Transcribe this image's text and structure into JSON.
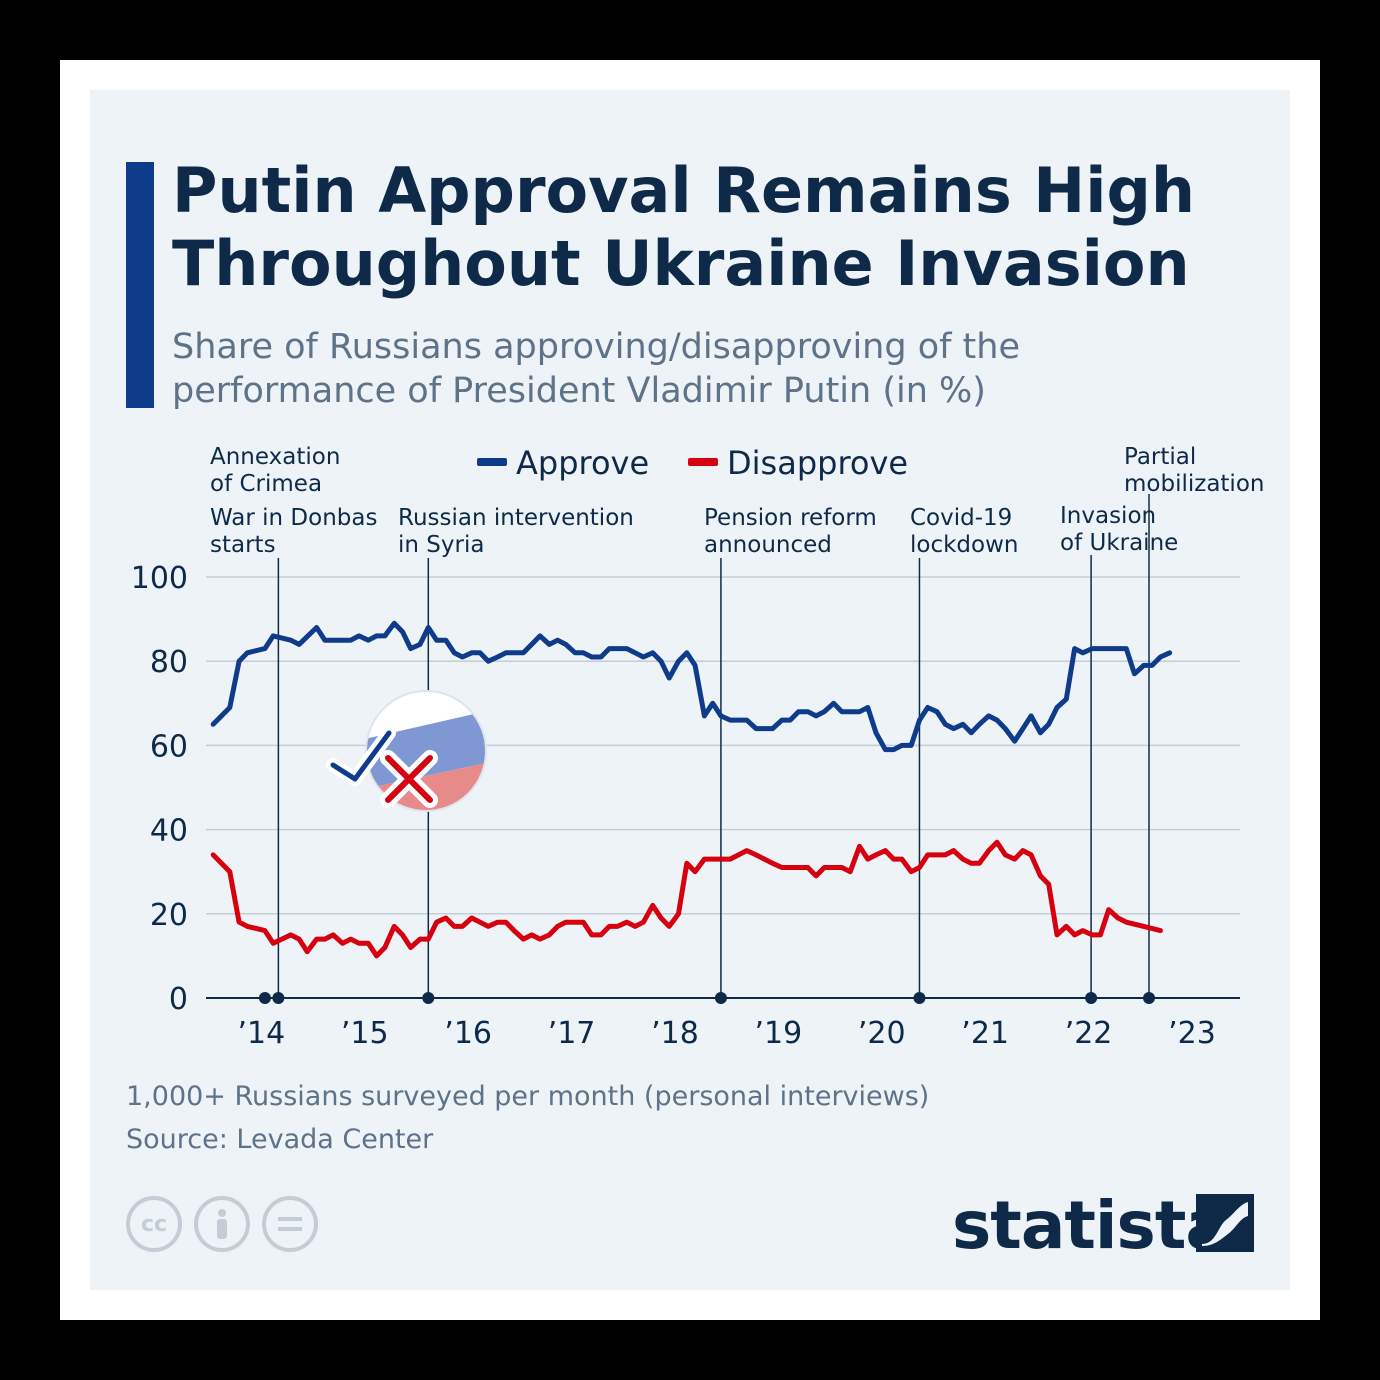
{
  "header": {
    "title": "Putin Approval Remains High Throughout Ukraine Invasion",
    "subtitle": "Share of Russians approving/disapproving of the performance of President Vladimir Putin (in %)"
  },
  "footer": {
    "note": "1,000+ Russians surveyed per month (personal interviews)",
    "source": "Source: Levada Center",
    "brand": "statista"
  },
  "icons": [
    "cc-icon",
    "person-icon",
    "equals-icon",
    "statista-logo-icon",
    "russia-flag-check-cross-icon"
  ],
  "colors": {
    "approve": "#0f3c8a",
    "disapprove": "#d7000f",
    "title": "#0f2a48",
    "accent": "#0f3c8a"
  },
  "chart_data": {
    "type": "line",
    "title": "",
    "xlabel": "",
    "ylabel": "",
    "ylim": [
      0,
      100
    ],
    "yticks": [
      0,
      20,
      40,
      60,
      80,
      100
    ],
    "xlim": [
      2013.6,
      2023.6
    ],
    "xticks": [
      {
        "value": 2014,
        "label": "’14"
      },
      {
        "value": 2015,
        "label": "’15"
      },
      {
        "value": 2016,
        "label": "’16"
      },
      {
        "value": 2017,
        "label": "’17"
      },
      {
        "value": 2018,
        "label": "’18"
      },
      {
        "value": 2019,
        "label": "’19"
      },
      {
        "value": 2020,
        "label": "’20"
      },
      {
        "value": 2021,
        "label": "’21"
      },
      {
        "value": 2022,
        "label": "’22"
      },
      {
        "value": 2023,
        "label": "’23"
      }
    ],
    "grid": true,
    "legend": "top-center",
    "series": [
      {
        "name": "Approve",
        "color": "#0f3c8a",
        "points": [
          [
            2013.67,
            65
          ],
          [
            2013.83,
            69
          ],
          [
            2013.92,
            80
          ],
          [
            2014.0,
            82
          ],
          [
            2014.17,
            83
          ],
          [
            2014.25,
            86
          ],
          [
            2014.42,
            85
          ],
          [
            2014.5,
            84
          ],
          [
            2014.67,
            88
          ],
          [
            2014.75,
            85
          ],
          [
            2014.92,
            85
          ],
          [
            2015.0,
            85
          ],
          [
            2015.08,
            86
          ],
          [
            2015.17,
            85
          ],
          [
            2015.25,
            86
          ],
          [
            2015.33,
            86
          ],
          [
            2015.42,
            89
          ],
          [
            2015.5,
            87
          ],
          [
            2015.58,
            83
          ],
          [
            2015.67,
            84
          ],
          [
            2015.75,
            88
          ],
          [
            2015.83,
            85
          ],
          [
            2015.92,
            85
          ],
          [
            2016.0,
            82
          ],
          [
            2016.08,
            81
          ],
          [
            2016.17,
            82
          ],
          [
            2016.25,
            82
          ],
          [
            2016.33,
            80
          ],
          [
            2016.42,
            81
          ],
          [
            2016.5,
            82
          ],
          [
            2016.67,
            82
          ],
          [
            2016.75,
            84
          ],
          [
            2016.83,
            86
          ],
          [
            2016.92,
            84
          ],
          [
            2017.0,
            85
          ],
          [
            2017.08,
            84
          ],
          [
            2017.17,
            82
          ],
          [
            2017.25,
            82
          ],
          [
            2017.33,
            81
          ],
          [
            2017.42,
            81
          ],
          [
            2017.5,
            83
          ],
          [
            2017.58,
            83
          ],
          [
            2017.67,
            83
          ],
          [
            2017.83,
            81
          ],
          [
            2017.92,
            82
          ],
          [
            2018.0,
            80
          ],
          [
            2018.08,
            76
          ],
          [
            2018.17,
            80
          ],
          [
            2018.25,
            82
          ],
          [
            2018.33,
            79
          ],
          [
            2018.42,
            67
          ],
          [
            2018.5,
            70
          ],
          [
            2018.58,
            67
          ],
          [
            2018.67,
            66
          ],
          [
            2018.83,
            66
          ],
          [
            2018.92,
            64
          ],
          [
            2019.08,
            64
          ],
          [
            2019.17,
            66
          ],
          [
            2019.25,
            66
          ],
          [
            2019.33,
            68
          ],
          [
            2019.42,
            68
          ],
          [
            2019.5,
            67
          ],
          [
            2019.58,
            68
          ],
          [
            2019.67,
            70
          ],
          [
            2019.75,
            68
          ],
          [
            2019.83,
            68
          ],
          [
            2019.92,
            68
          ],
          [
            2020.0,
            69
          ],
          [
            2020.08,
            63
          ],
          [
            2020.17,
            59
          ],
          [
            2020.25,
            59
          ],
          [
            2020.33,
            60
          ],
          [
            2020.42,
            60
          ],
          [
            2020.5,
            66
          ],
          [
            2020.58,
            69
          ],
          [
            2020.67,
            68
          ],
          [
            2020.75,
            65
          ],
          [
            2020.83,
            64
          ],
          [
            2020.92,
            65
          ],
          [
            2021.0,
            63
          ],
          [
            2021.08,
            65
          ],
          [
            2021.17,
            67
          ],
          [
            2021.25,
            66
          ],
          [
            2021.33,
            64
          ],
          [
            2021.42,
            61
          ],
          [
            2021.5,
            64
          ],
          [
            2021.58,
            67
          ],
          [
            2021.67,
            63
          ],
          [
            2021.75,
            65
          ],
          [
            2021.83,
            69
          ],
          [
            2021.92,
            71
          ],
          [
            2022.0,
            83
          ],
          [
            2022.08,
            82
          ],
          [
            2022.17,
            83
          ],
          [
            2022.25,
            83
          ],
          [
            2022.33,
            83
          ],
          [
            2022.42,
            83
          ],
          [
            2022.5,
            83
          ],
          [
            2022.58,
            77
          ],
          [
            2022.67,
            79
          ],
          [
            2022.75,
            79
          ],
          [
            2022.83,
            81
          ],
          [
            2022.92,
            82
          ]
        ]
      },
      {
        "name": "Disapprove",
        "color": "#d7000f",
        "points": [
          [
            2013.67,
            34
          ],
          [
            2013.83,
            30
          ],
          [
            2013.92,
            18
          ],
          [
            2014.0,
            17
          ],
          [
            2014.17,
            16
          ],
          [
            2014.25,
            13
          ],
          [
            2014.42,
            15
          ],
          [
            2014.5,
            14
          ],
          [
            2014.58,
            11
          ],
          [
            2014.67,
            14
          ],
          [
            2014.75,
            14
          ],
          [
            2014.83,
            15
          ],
          [
            2014.92,
            13
          ],
          [
            2015.0,
            14
          ],
          [
            2015.08,
            13
          ],
          [
            2015.17,
            13
          ],
          [
            2015.25,
            10
          ],
          [
            2015.33,
            12
          ],
          [
            2015.42,
            17
          ],
          [
            2015.5,
            15
          ],
          [
            2015.58,
            12
          ],
          [
            2015.67,
            14
          ],
          [
            2015.75,
            14
          ],
          [
            2015.83,
            18
          ],
          [
            2015.92,
            19
          ],
          [
            2016.0,
            17
          ],
          [
            2016.08,
            17
          ],
          [
            2016.17,
            19
          ],
          [
            2016.25,
            18
          ],
          [
            2016.33,
            17
          ],
          [
            2016.42,
            18
          ],
          [
            2016.5,
            18
          ],
          [
            2016.58,
            16
          ],
          [
            2016.67,
            14
          ],
          [
            2016.75,
            15
          ],
          [
            2016.83,
            14
          ],
          [
            2016.92,
            15
          ],
          [
            2017.0,
            17
          ],
          [
            2017.08,
            18
          ],
          [
            2017.17,
            18
          ],
          [
            2017.25,
            18
          ],
          [
            2017.33,
            15
          ],
          [
            2017.42,
            15
          ],
          [
            2017.5,
            17
          ],
          [
            2017.58,
            17
          ],
          [
            2017.67,
            18
          ],
          [
            2017.75,
            17
          ],
          [
            2017.83,
            18
          ],
          [
            2017.92,
            22
          ],
          [
            2018.0,
            19
          ],
          [
            2018.08,
            17
          ],
          [
            2018.17,
            20
          ],
          [
            2018.25,
            32
          ],
          [
            2018.33,
            30
          ],
          [
            2018.42,
            33
          ],
          [
            2018.5,
            33
          ],
          [
            2018.58,
            33
          ],
          [
            2018.67,
            33
          ],
          [
            2018.75,
            34
          ],
          [
            2018.83,
            35
          ],
          [
            2018.92,
            34
          ],
          [
            2019.0,
            33
          ],
          [
            2019.08,
            32
          ],
          [
            2019.17,
            31
          ],
          [
            2019.25,
            31
          ],
          [
            2019.33,
            31
          ],
          [
            2019.42,
            31
          ],
          [
            2019.5,
            29
          ],
          [
            2019.58,
            31
          ],
          [
            2019.67,
            31
          ],
          [
            2019.75,
            31
          ],
          [
            2019.83,
            30
          ],
          [
            2019.92,
            36
          ],
          [
            2020.0,
            33
          ],
          [
            2020.08,
            34
          ],
          [
            2020.17,
            35
          ],
          [
            2020.25,
            33
          ],
          [
            2020.33,
            33
          ],
          [
            2020.42,
            30
          ],
          [
            2020.5,
            31
          ],
          [
            2020.58,
            34
          ],
          [
            2020.67,
            34
          ],
          [
            2020.75,
            34
          ],
          [
            2020.83,
            35
          ],
          [
            2020.92,
            33
          ],
          [
            2021.0,
            32
          ],
          [
            2021.08,
            32
          ],
          [
            2021.17,
            35
          ],
          [
            2021.25,
            37
          ],
          [
            2021.33,
            34
          ],
          [
            2021.42,
            33
          ],
          [
            2021.5,
            35
          ],
          [
            2021.58,
            34
          ],
          [
            2021.67,
            29
          ],
          [
            2021.75,
            27
          ],
          [
            2021.83,
            15
          ],
          [
            2021.92,
            17
          ],
          [
            2022.0,
            15
          ],
          [
            2022.08,
            16
          ],
          [
            2022.17,
            15
          ],
          [
            2022.25,
            15
          ],
          [
            2022.33,
            21
          ],
          [
            2022.42,
            19
          ],
          [
            2022.5,
            18
          ],
          [
            2022.67,
            17
          ],
          [
            2022.83,
            16
          ]
        ]
      }
    ],
    "annotations": [
      {
        "x": 2014.17,
        "lines": [
          "Annexation",
          "of Crimea"
        ]
      },
      {
        "x": 2014.3,
        "lines": [
          "War in Donbas",
          "starts"
        ]
      },
      {
        "x": 2015.75,
        "lines": [
          "Russian intervention",
          "in Syria"
        ]
      },
      {
        "x": 2018.58,
        "lines": [
          "Pension reform",
          "announced"
        ]
      },
      {
        "x": 2020.5,
        "lines": [
          "Covid-19",
          "lockdown"
        ]
      },
      {
        "x": 2022.16,
        "lines": [
          "Invasion",
          "of Ukraine"
        ]
      },
      {
        "x": 2022.72,
        "lines": [
          "Partial",
          "mobilization"
        ]
      }
    ]
  }
}
